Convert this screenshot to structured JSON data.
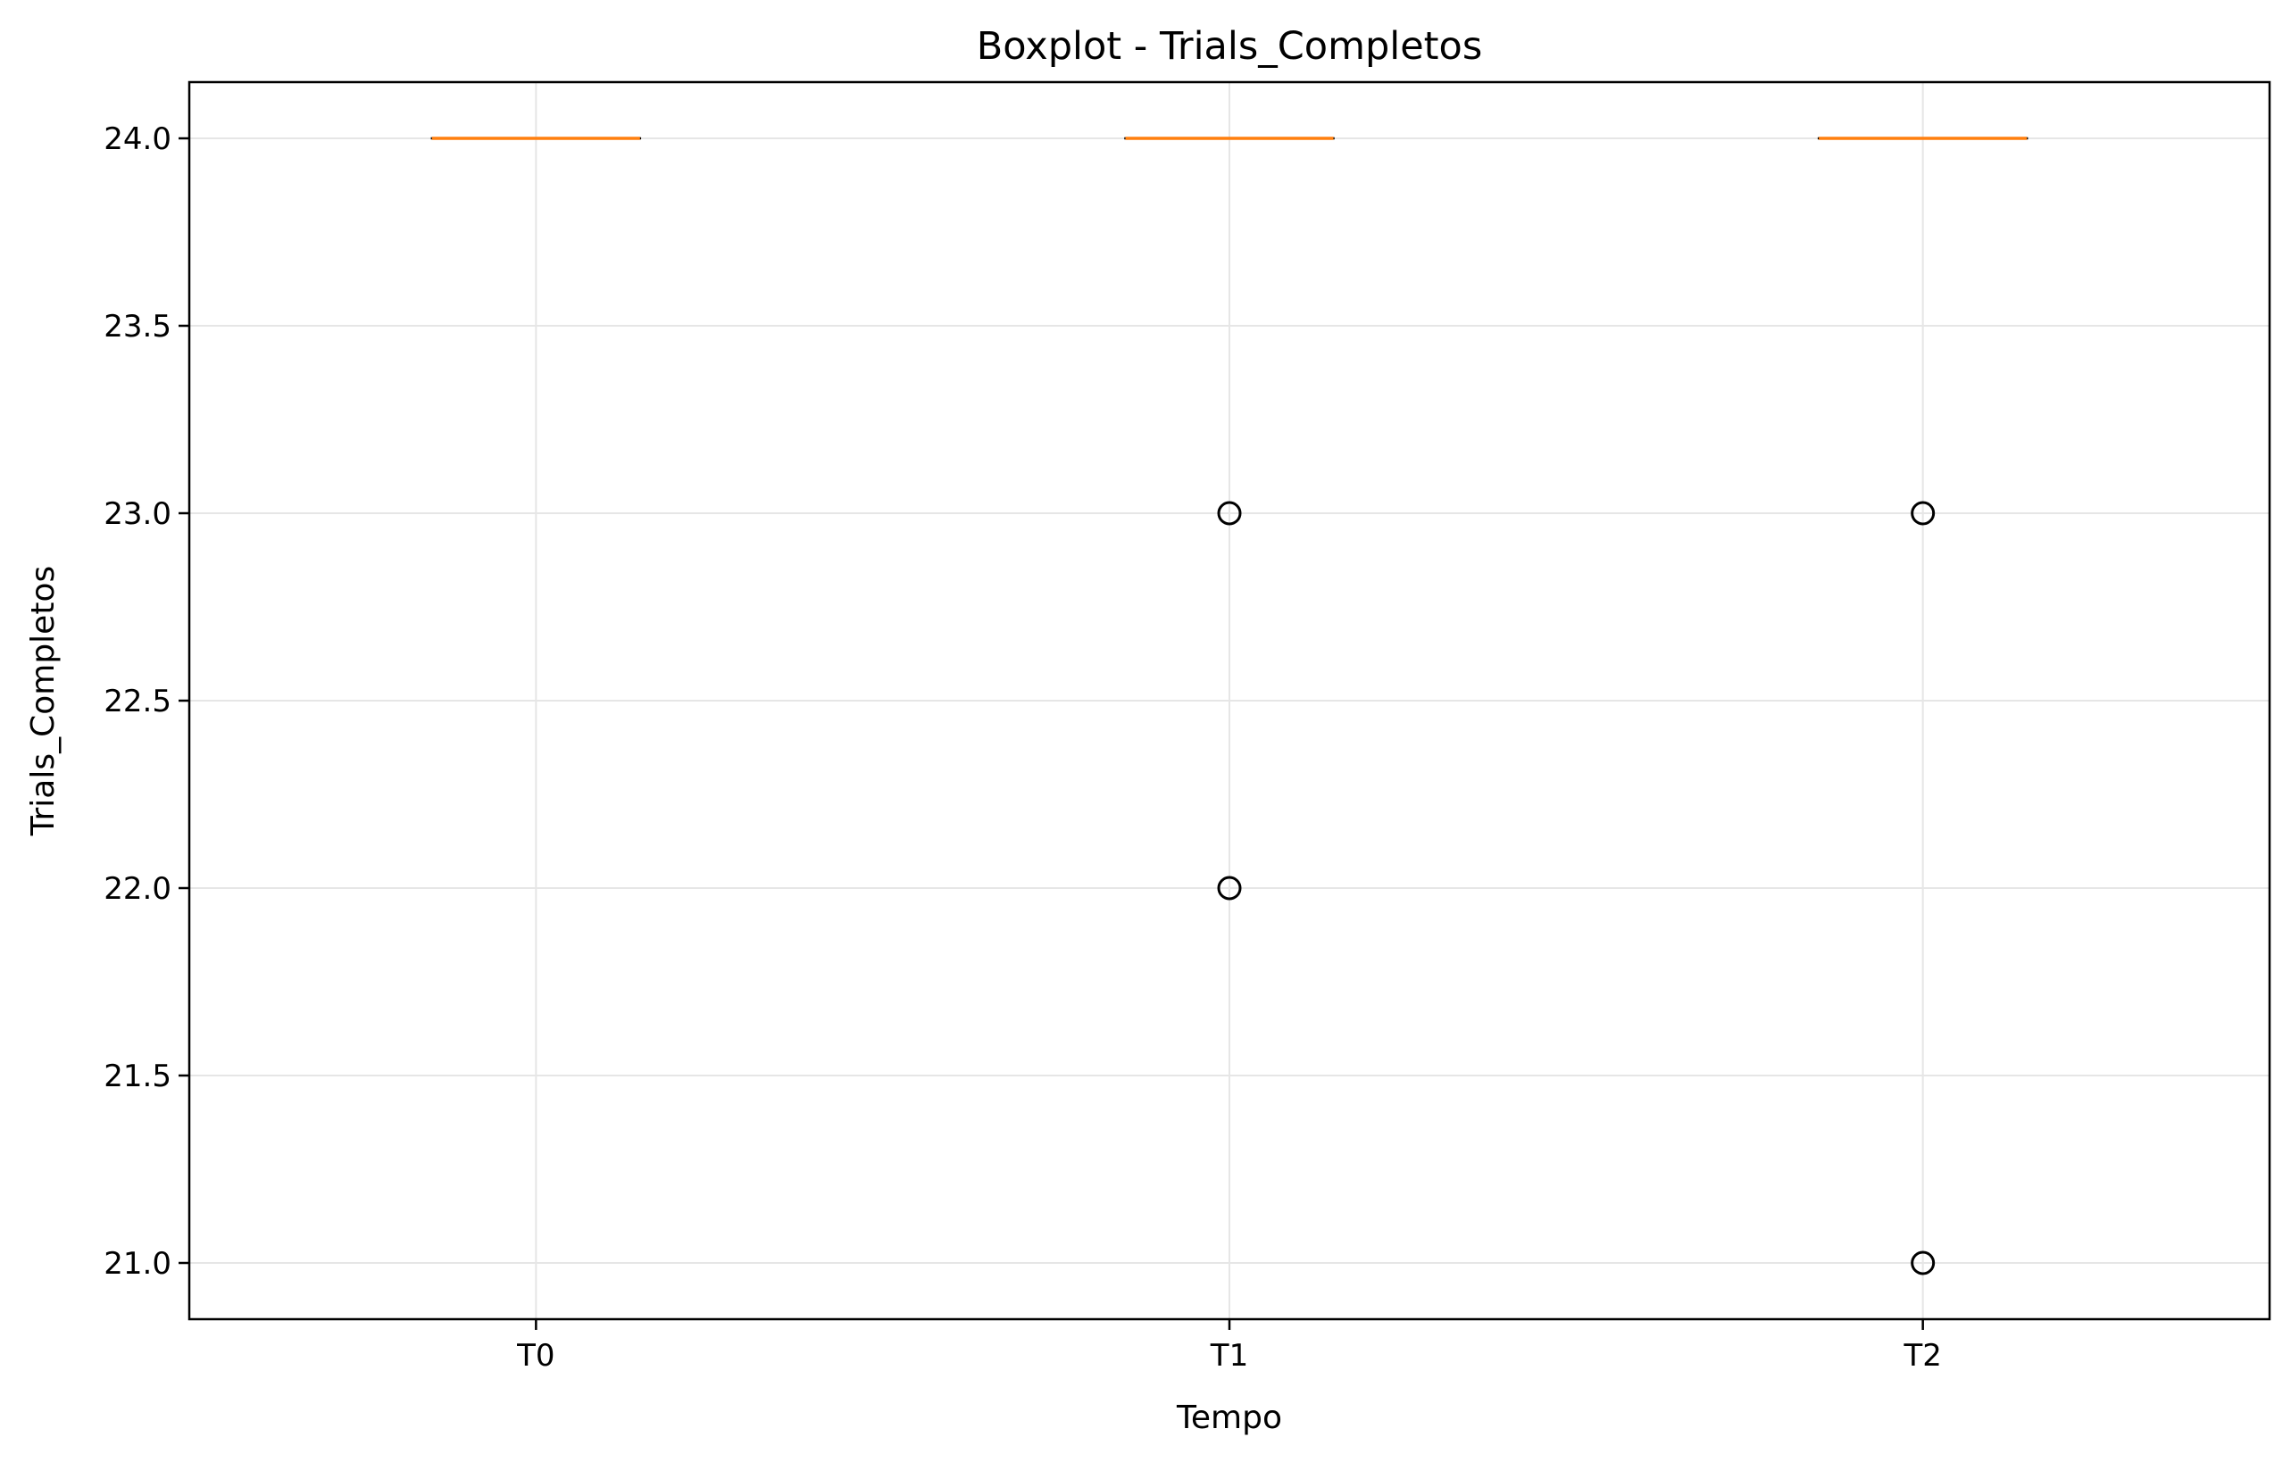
{
  "chart_data": {
    "type": "boxplot",
    "title": "Boxplot - Trials_Completos",
    "xlabel": "Tempo",
    "ylabel": "Trials_Completos",
    "categories": [
      "T0",
      "T1",
      "T2"
    ],
    "ylim": [
      20.85,
      24.15
    ],
    "yticks": [
      21.0,
      21.5,
      22.0,
      22.5,
      23.0,
      23.5,
      24.0
    ],
    "ytick_labels": [
      "21.0",
      "21.5",
      "22.0",
      "22.5",
      "23.0",
      "23.5",
      "24.0"
    ],
    "grid": true,
    "boxes": [
      {
        "category": "T0",
        "whisker_low": 24.0,
        "q1": 24.0,
        "median": 24.0,
        "q3": 24.0,
        "whisker_high": 24.0,
        "outliers": []
      },
      {
        "category": "T1",
        "whisker_low": 24.0,
        "q1": 24.0,
        "median": 24.0,
        "q3": 24.0,
        "whisker_high": 24.0,
        "outliers": [
          23.0,
          22.0
        ]
      },
      {
        "category": "T2",
        "whisker_low": 24.0,
        "q1": 24.0,
        "median": 24.0,
        "q3": 24.0,
        "whisker_high": 24.0,
        "outliers": [
          23.0,
          21.0
        ]
      }
    ],
    "colors": {
      "median": "#ff7f0e",
      "box": "#000000",
      "grid": "#e6e6e6",
      "outlier": "#000000"
    }
  }
}
